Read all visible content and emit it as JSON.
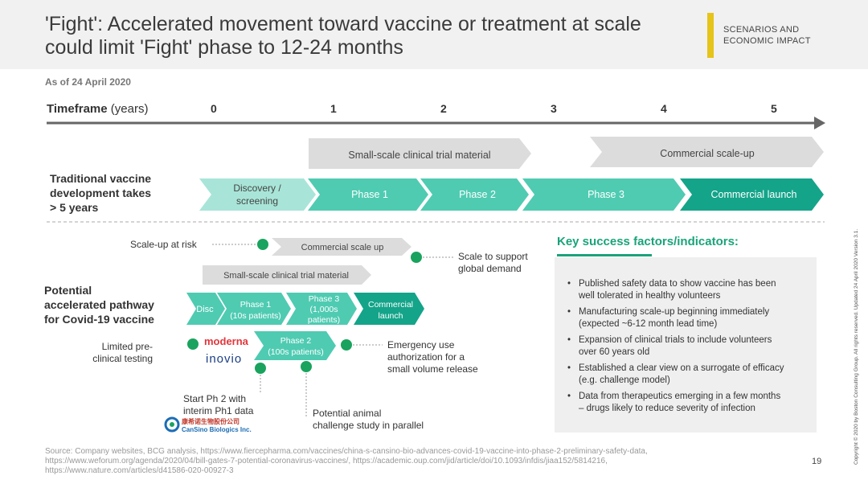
{
  "header": {
    "title_line1": "'Fight': Accelerated movement toward vaccine or treatment at scale",
    "title_line2": "could limit 'Fight' phase to 12-24 months",
    "tag_line1": "SCENARIOS AND",
    "tag_line2": "ECONOMIC IMPACT",
    "accent_color": "#e6c419"
  },
  "as_of": "As of 24 April 2020",
  "timeframe": {
    "label": "Timeframe",
    "unit": "(years)",
    "ticks": [
      "0",
      "1",
      "2",
      "3",
      "4",
      "5"
    ]
  },
  "traditional": {
    "label_line1": "Traditional vaccine",
    "label_line2": "development takes",
    "label_line3": "> 5 years",
    "gray_bars": [
      "Small-scale clinical trial material",
      "Commercial scale-up"
    ],
    "phases": [
      {
        "line1": "Discovery /",
        "line2": "screening"
      },
      {
        "line1": "Phase 1",
        "line2": ""
      },
      {
        "line1": "Phase 2",
        "line2": ""
      },
      {
        "line1": "Phase 3",
        "line2": ""
      },
      {
        "line1": "Commercial launch",
        "line2": ""
      }
    ]
  },
  "accelerated": {
    "label_line1": "Potential",
    "label_line2": "accelerated pathway",
    "label_line3": "for Covid-19 vaccine",
    "scale_up_at_risk": "Scale-up at risk",
    "commercial_scale_up": "Commercial scale up",
    "scale_support_line1": "Scale to support",
    "scale_support_line2": "global demand",
    "small_scale": "Small-scale clinical trial material",
    "disc": "Disc",
    "phase1_line1": "Phase 1",
    "phase1_line2": "(10s patients)",
    "phase3_line1": "Phase 3",
    "phase3_line2": "(1,000s",
    "phase3_line3": "patients)",
    "commercial_line1": "Commercial",
    "commercial_line2": "launch",
    "phase2_line1": "Phase 2",
    "phase2_line2": "(100s patients)",
    "limited_line1": "Limited pre-",
    "limited_line2": "clinical testing",
    "moderna": "moderna",
    "inovio": "inovio",
    "emergency_line1": "Emergency use",
    "emergency_line2": "authorization for a",
    "emergency_line3": "small volume release",
    "start_ph2_line1": "Start Ph 2 with",
    "start_ph2_line2": "interim Ph1 data",
    "cansino_cn": "康希诺生物股份公司",
    "cansino_en": "CanSino Biologics Inc.",
    "animal_line1": "Potential  animal",
    "animal_line2": "challenge study in parallel"
  },
  "ksf": {
    "title": "Key success factors/indicators:",
    "items": [
      {
        "line1": "Published safety data to show vaccine has been",
        "line2": "well tolerated in healthy volunteers"
      },
      {
        "line1": "Manufacturing scale-up beginning immediately",
        "line2": "(expected ~6-12 month lead time)"
      },
      {
        "line1": "Expansion of clinical trials to include volunteers",
        "line2": "over 60 years old"
      },
      {
        "line1": "Established a clear view on a surrogate of efficacy",
        "line2": "(e.g. challenge model)"
      },
      {
        "line1": "Data from therapeutics emerging in a few months",
        "line2": "– drugs likely to reduce severity of infection"
      }
    ],
    "accent_color": "#1aa37a"
  },
  "source": {
    "line1": "Source: Company websites, BCG analysis,  https://www.fiercepharma.com/vaccines/china-s-cansino-bio-advances-covid-19-vaccine-into-phase-2-preliminary-safety-data,",
    "line2": "https://www.weforum.org/agenda/2020/04/bill-gates-7-potential-coronavirus-vaccines/,  https://academic.oup.com/jid/article/doi/10.1093/infdis/jiaa152/5814216,",
    "line3": "https://www.nature.com/articles/d41586-020-00927-3"
  },
  "page_number": "19",
  "copyright": "Copyright © 2020 by Boston Consulting Group. All rights reserved.  Updated 24 April 2020 Version 3.1.",
  "colors": {
    "teal_dark": "#14a48a",
    "teal_mid": "#4fcbb2",
    "teal_light": "#a8e5d8",
    "gray_bar": "#dcdcdc",
    "dot_green": "#1aa35e"
  }
}
